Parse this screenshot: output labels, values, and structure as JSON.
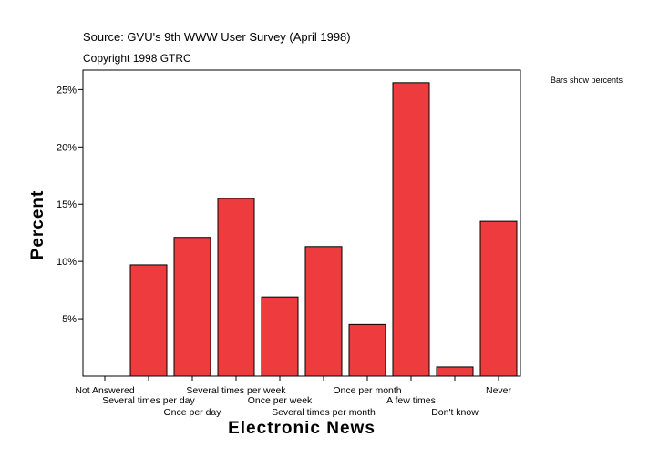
{
  "chart_data": {
    "type": "bar",
    "source": "Source: GVU's 9th WWW User Survey (April 1998)",
    "copyright": "Copyright 1998 GTRC",
    "note": "Bars show percents",
    "xlabel": "Electronic News",
    "ylabel": "Percent",
    "categories": [
      "Not Answered",
      "Several times per day",
      "Once per day",
      "Several times per week",
      "Once per week",
      "Several times per month",
      "Once per month",
      "A few times",
      "Don't know",
      "Never"
    ],
    "values": [
      0,
      9.7,
      12.1,
      15.5,
      6.9,
      11.3,
      4.5,
      25.6,
      0.8,
      13.5
    ],
    "color": "#ee3b3e",
    "ylim": [
      0,
      26.7
    ],
    "yticks": [
      {
        "value": 5,
        "label": "5%"
      },
      {
        "value": 10,
        "label": "10%"
      },
      {
        "value": 15,
        "label": "15%"
      },
      {
        "value": 20,
        "label": "20%"
      },
      {
        "value": 25,
        "label": "25%"
      }
    ]
  }
}
